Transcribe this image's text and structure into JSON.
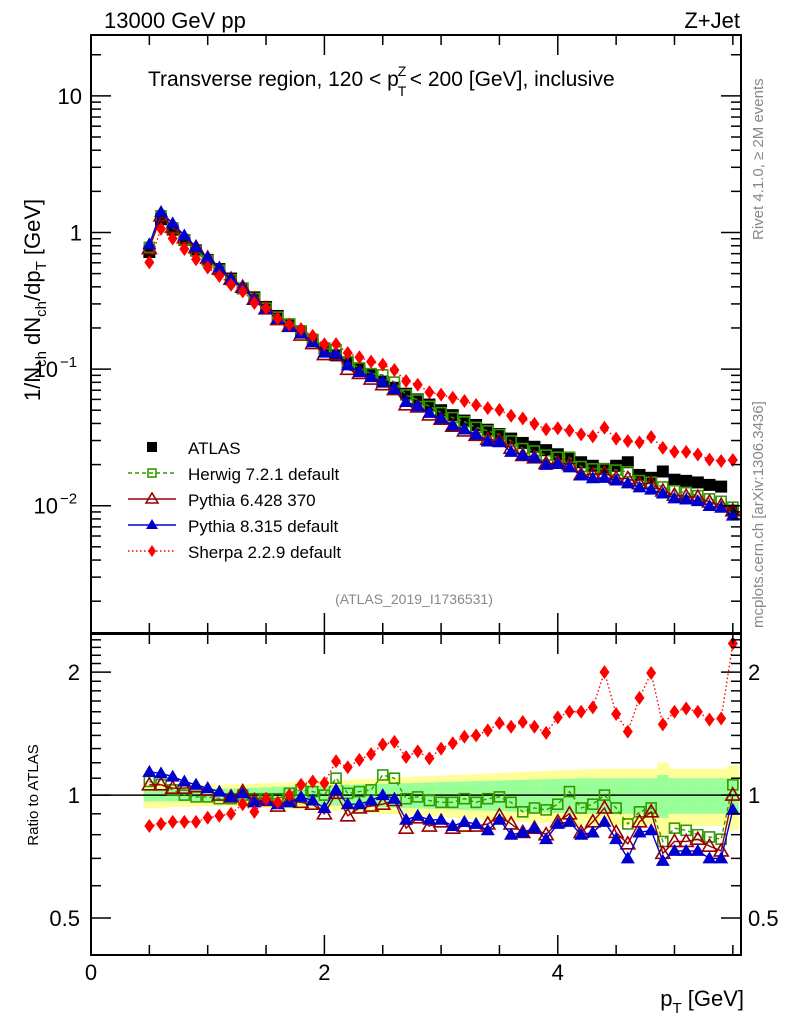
{
  "chart_data": [
    {
      "type": "scatter",
      "panel": "main",
      "title": "Transverse region, 120 < p_T^Z < 200 [GeV], inclusive",
      "top_left_label": "13000 GeV pp",
      "top_right_label": "Z+Jet",
      "ylabel": "1/N_ch dN_ch/dp_T [GeV]",
      "xlabel": "p_T [GeV]",
      "yscale": "log",
      "ylim": [
        0.00117,
        27.9
      ],
      "xlim": [
        0,
        5.57
      ],
      "yticks": [
        {
          "v": 10,
          "label": "10"
        },
        {
          "v": 1,
          "label": "1"
        },
        {
          "v": 0.1,
          "label": "10",
          "exp": "−1"
        },
        {
          "v": 0.01,
          "label": "10",
          "exp": "−2"
        }
      ],
      "watermark": "(ATLAS_2019_I1736531)",
      "legend_position": "lower-left",
      "x": [
        0.5,
        0.6,
        0.7,
        0.8,
        0.9,
        1.0,
        1.1,
        1.2,
        1.3,
        1.4,
        1.5,
        1.6,
        1.7,
        1.8,
        1.9,
        2.0,
        2.1,
        2.2,
        2.3,
        2.4,
        2.5,
        2.6,
        2.7,
        2.8,
        2.9,
        3.0,
        3.1,
        3.2,
        3.3,
        3.4,
        3.5,
        3.6,
        3.7,
        3.8,
        3.9,
        4.0,
        4.1,
        4.2,
        4.3,
        4.4,
        4.5,
        4.6,
        4.7,
        4.8,
        4.9,
        5.0,
        5.1,
        5.2,
        5.3,
        5.4,
        5.5
      ],
      "series": [
        {
          "name": "ATLAS",
          "key": "atlas",
          "values": [
            0.72,
            1.25,
            1.05,
            0.88,
            0.74,
            0.63,
            0.54,
            0.46,
            0.39,
            0.335,
            0.285,
            0.245,
            0.212,
            0.185,
            0.162,
            0.142,
            0.126,
            0.112,
            0.1,
            0.09,
            0.081,
            0.073,
            0.066,
            0.06,
            0.055,
            0.05,
            0.046,
            0.042,
            0.039,
            0.036,
            0.0335,
            0.031,
            0.0288,
            0.027,
            0.0255,
            0.0238,
            0.0222,
            0.0208,
            0.0196,
            0.0186,
            0.0196,
            0.0208,
            0.0168,
            0.016,
            0.0178,
            0.0155,
            0.0152,
            0.0148,
            0.0142,
            0.0138,
            0.0092
          ]
        }
      ]
    },
    {
      "type": "line",
      "panel": "ratio",
      "ylabel": "Ratio to ATLAS",
      "xlabel": "p_T [GeV]",
      "yscale": "log",
      "ylim": [
        0.406,
        2.48
      ],
      "xlim": [
        0,
        5.57
      ],
      "xticks": [
        0,
        2,
        4
      ],
      "yticks": [
        {
          "v": 2,
          "label": "2"
        },
        {
          "v": 1,
          "label": "1"
        },
        {
          "v": 0.5,
          "label": "0.5"
        }
      ],
      "x": [
        0.5,
        0.6,
        0.7,
        0.8,
        0.9,
        1.0,
        1.1,
        1.2,
        1.3,
        1.4,
        1.5,
        1.6,
        1.7,
        1.8,
        1.9,
        2.0,
        2.1,
        2.2,
        2.3,
        2.4,
        2.5,
        2.6,
        2.7,
        2.8,
        2.9,
        3.0,
        3.1,
        3.2,
        3.3,
        3.4,
        3.5,
        3.6,
        3.7,
        3.8,
        3.9,
        4.0,
        4.1,
        4.2,
        4.3,
        4.4,
        4.5,
        4.6,
        4.7,
        4.8,
        4.9,
        5.0,
        5.1,
        5.2,
        5.3,
        5.4,
        5.5
      ],
      "band_inner": [
        0.035,
        0.035,
        0.035,
        0.035,
        0.035,
        0.036,
        0.037,
        0.038,
        0.04,
        0.042,
        0.045,
        0.048,
        0.05,
        0.052,
        0.054,
        0.056,
        0.058,
        0.06,
        0.062,
        0.064,
        0.066,
        0.068,
        0.07,
        0.072,
        0.074,
        0.076,
        0.078,
        0.08,
        0.082,
        0.084,
        0.086,
        0.088,
        0.09,
        0.092,
        0.094,
        0.096,
        0.098,
        0.1,
        0.1,
        0.1,
        0.1,
        0.1,
        0.1,
        0.1,
        0.12,
        0.1,
        0.1,
        0.1,
        0.1,
        0.1,
        0.1
      ],
      "band_outer": [
        0.07,
        0.07,
        0.065,
        0.065,
        0.06,
        0.06,
        0.06,
        0.062,
        0.064,
        0.066,
        0.07,
        0.072,
        0.075,
        0.078,
        0.08,
        0.083,
        0.086,
        0.09,
        0.093,
        0.096,
        0.1,
        0.103,
        0.106,
        0.11,
        0.113,
        0.116,
        0.12,
        0.123,
        0.126,
        0.13,
        0.133,
        0.136,
        0.14,
        0.143,
        0.146,
        0.15,
        0.152,
        0.155,
        0.158,
        0.16,
        0.16,
        0.16,
        0.16,
        0.16,
        0.2,
        0.16,
        0.16,
        0.16,
        0.16,
        0.16,
        0.18
      ],
      "series": [
        {
          "name": "Herwig 7.2.1 default",
          "key": "herwig",
          "color": "#339900",
          "values": [
            1.08,
            1.06,
            1.03,
            1.0,
            0.99,
            0.99,
            0.98,
            0.98,
            1.0,
            0.98,
            0.98,
            0.98,
            1.01,
            1.03,
            1.02,
            1.0,
            1.1,
            1.01,
            1.02,
            1.03,
            1.12,
            1.1,
            0.98,
            0.99,
            0.97,
            0.96,
            0.96,
            0.98,
            0.96,
            0.98,
            0.99,
            0.96,
            0.91,
            0.93,
            0.92,
            0.95,
            1.02,
            0.93,
            0.95,
            1.0,
            0.93,
            0.85,
            0.91,
            0.93,
            0.77,
            0.83,
            0.82,
            0.8,
            0.79,
            0.78,
            1.06
          ]
        },
        {
          "name": "Pythia 6.428 370",
          "key": "pythia6",
          "color": "#990000",
          "values": [
            1.06,
            1.06,
            1.04,
            1.04,
            1.05,
            1.03,
            1.0,
            0.99,
            1.02,
            0.97,
            0.97,
            0.94,
            0.97,
            0.96,
            0.95,
            0.9,
            1.01,
            0.89,
            0.93,
            0.94,
            0.95,
            0.97,
            0.83,
            0.88,
            0.84,
            0.86,
            0.83,
            0.84,
            0.84,
            0.85,
            0.89,
            0.85,
            0.81,
            0.83,
            0.8,
            0.86,
            0.9,
            0.81,
            0.86,
            0.93,
            0.81,
            0.76,
            0.86,
            0.91,
            0.72,
            0.77,
            0.77,
            0.78,
            0.75,
            0.73,
            1.0
          ]
        },
        {
          "name": "Pythia 8.315 default",
          "key": "pythia8",
          "color": "#0000cc",
          "values": [
            1.14,
            1.13,
            1.11,
            1.08,
            1.06,
            1.04,
            1.02,
            0.99,
            1.01,
            0.96,
            0.97,
            0.95,
            0.96,
            0.99,
            0.97,
            0.93,
            1.03,
            0.95,
            0.95,
            0.97,
            1.0,
            0.98,
            0.87,
            0.89,
            0.87,
            0.87,
            0.84,
            0.86,
            0.85,
            0.82,
            0.87,
            0.8,
            0.81,
            0.83,
            0.78,
            0.85,
            0.86,
            0.8,
            0.81,
            0.86,
            0.78,
            0.7,
            0.81,
            0.82,
            0.69,
            0.73,
            0.73,
            0.73,
            0.7,
            0.7,
            0.92
          ]
        },
        {
          "name": "Sherpa 2.2.9 default",
          "key": "sherpa",
          "color": "#ff0000",
          "values": [
            0.84,
            0.85,
            0.86,
            0.86,
            0.86,
            0.88,
            0.89,
            0.9,
            0.95,
            0.91,
            0.98,
            0.96,
            1.0,
            1.06,
            1.08,
            1.07,
            1.21,
            1.17,
            1.22,
            1.26,
            1.33,
            1.35,
            1.24,
            1.28,
            1.23,
            1.3,
            1.34,
            1.39,
            1.4,
            1.44,
            1.5,
            1.47,
            1.51,
            1.47,
            1.42,
            1.55,
            1.6,
            1.6,
            1.64,
            2.0,
            1.58,
            1.43,
            1.73,
            1.99,
            1.49,
            1.6,
            1.63,
            1.6,
            1.53,
            1.54,
            2.35
          ]
        }
      ]
    }
  ],
  "legend": [
    {
      "key": "atlas",
      "label": "ATLAS",
      "marker": "filled-square",
      "color": "#000000",
      "line": "none"
    },
    {
      "key": "herwig",
      "label": "Herwig 7.2.1 default",
      "marker": "open-square",
      "color": "#339900",
      "line": "dashed"
    },
    {
      "key": "pythia6",
      "label": "Pythia 6.428 370",
      "marker": "open-triangle",
      "color": "#990000",
      "line": "solid"
    },
    {
      "key": "pythia8",
      "label": "Pythia 8.315 default",
      "marker": "filled-triangle",
      "color": "#0000cc",
      "line": "solid"
    },
    {
      "key": "sherpa",
      "label": "Sherpa 2.2.9 default",
      "marker": "filled-diamond",
      "color": "#ff0000",
      "line": "dotted"
    }
  ],
  "side_labels": {
    "rivet": "Rivet 4.1.0, ≥ 2M events",
    "mcplots": "mcplots.cern.ch [arXiv:1306.3436]"
  },
  "colors": {
    "band_inner": "#99ff99",
    "band_outer": "#ffff99"
  }
}
